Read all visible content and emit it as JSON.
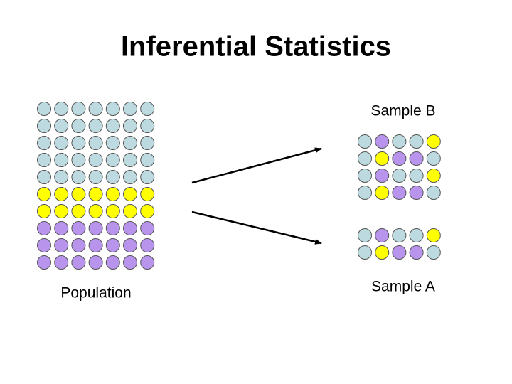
{
  "title": "Inferential Statistics",
  "labels": {
    "sample_b": "Sample B",
    "population": "Population",
    "sample_a": "Sample A"
  }
}
